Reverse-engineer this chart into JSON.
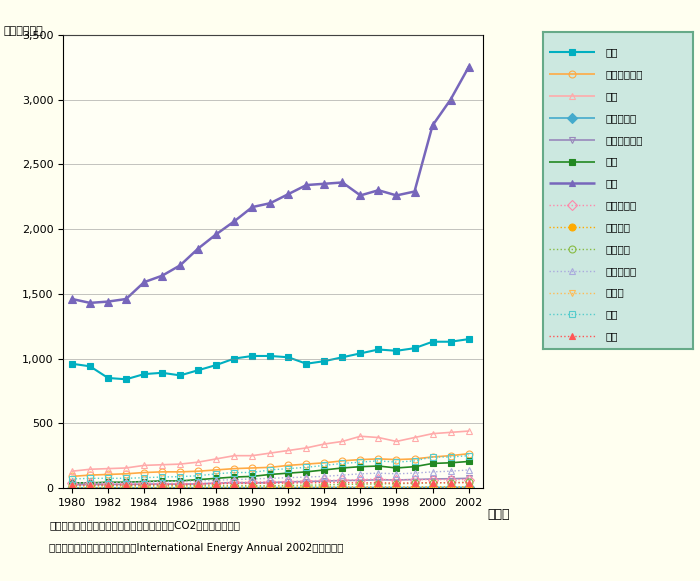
{
  "years": [
    1980,
    1981,
    1982,
    1983,
    1984,
    1985,
    1986,
    1987,
    1988,
    1989,
    1990,
    1991,
    1992,
    1993,
    1994,
    1995,
    1996,
    1997,
    1998,
    1999,
    2000,
    2001,
    2002
  ],
  "series": {
    "日本": [
      960,
      940,
      850,
      840,
      880,
      890,
      870,
      910,
      950,
      1000,
      1020,
      1020,
      1010,
      960,
      980,
      1010,
      1040,
      1070,
      1060,
      1080,
      1130,
      1130,
      1150
    ],
    "インドネシア": [
      90,
      100,
      105,
      110,
      120,
      125,
      125,
      130,
      140,
      150,
      155,
      160,
      175,
      185,
      195,
      210,
      220,
      225,
      220,
      225,
      240,
      250,
      265
    ],
    "韓国": [
      130,
      145,
      150,
      155,
      175,
      180,
      185,
      200,
      225,
      250,
      250,
      270,
      290,
      310,
      340,
      360,
      400,
      390,
      360,
      390,
      420,
      430,
      440
    ],
    "カンボジア": [
      2,
      2,
      2,
      2,
      2,
      2,
      2,
      2,
      3,
      3,
      3,
      3,
      3,
      3,
      4,
      4,
      4,
      4,
      4,
      4,
      5,
      5,
      5
    ],
    "シンガポール": [
      25,
      28,
      28,
      28,
      30,
      32,
      30,
      32,
      38,
      42,
      40,
      42,
      48,
      50,
      54,
      58,
      60,
      64,
      62,
      66,
      70,
      72,
      75
    ],
    "タイ": [
      40,
      40,
      45,
      45,
      50,
      55,
      55,
      65,
      75,
      85,
      90,
      105,
      115,
      125,
      140,
      155,
      165,
      170,
      155,
      165,
      190,
      195,
      205
    ],
    "中国": [
      1460,
      1430,
      1440,
      1460,
      1590,
      1640,
      1720,
      1850,
      1960,
      2060,
      2170,
      2200,
      2270,
      2340,
      2350,
      2360,
      2260,
      2300,
      2260,
      2290,
      2800,
      3000,
      3250
    ],
    "フィリピン": [
      40,
      40,
      35,
      35,
      35,
      35,
      35,
      35,
      40,
      45,
      45,
      50,
      50,
      55,
      60,
      60,
      65,
      70,
      60,
      65,
      65,
      65,
      65
    ],
    "ブルネイ": [
      5,
      5,
      5,
      5,
      6,
      6,
      6,
      6,
      6,
      7,
      7,
      7,
      7,
      8,
      8,
      8,
      8,
      8,
      8,
      8,
      9,
      9,
      9
    ],
    "ベトナム": [
      18,
      18,
      18,
      18,
      18,
      18,
      18,
      18,
      18,
      18,
      18,
      18,
      20,
      22,
      24,
      28,
      30,
      32,
      34,
      36,
      40,
      42,
      45
    ],
    "マレーシア": [
      40,
      40,
      42,
      44,
      48,
      50,
      52,
      55,
      60,
      65,
      70,
      75,
      80,
      85,
      90,
      100,
      110,
      115,
      110,
      115,
      125,
      130,
      140
    ],
    "ラオス": [
      1,
      1,
      1,
      1,
      1,
      1,
      1,
      1,
      1,
      1,
      1,
      1,
      1,
      1,
      2,
      2,
      2,
      2,
      2,
      2,
      2,
      2,
      2
    ],
    "台湾": [
      70,
      75,
      75,
      75,
      80,
      85,
      88,
      95,
      110,
      120,
      120,
      140,
      150,
      160,
      175,
      190,
      200,
      210,
      200,
      210,
      240,
      240,
      250
    ],
    "香港": [
      20,
      22,
      23,
      23,
      25,
      26,
      27,
      30,
      32,
      35,
      35,
      38,
      38,
      40,
      42,
      42,
      40,
      42,
      38,
      40,
      42,
      40,
      42
    ]
  },
  "series_styles": {
    "日本": {
      "color": "#00afc0",
      "marker": "s",
      "linestyle": "-",
      "markersize": 5,
      "linewidth": 1.5,
      "markerfacecolor": "#00afc0"
    },
    "インドネシア": {
      "color": "#ffaa44",
      "marker": "o",
      "linestyle": "-",
      "markersize": 5,
      "linewidth": 1.2,
      "markerfacecolor": "none"
    },
    "韓国": {
      "color": "#ffaaaa",
      "marker": "^",
      "linestyle": "-",
      "markersize": 5,
      "linewidth": 1.2,
      "markerfacecolor": "none"
    },
    "カンボジア": {
      "color": "#44aacc",
      "marker": "D",
      "linestyle": "-",
      "markersize": 5,
      "linewidth": 1.2,
      "markerfacecolor": "#44aacc"
    },
    "シンガポール": {
      "color": "#9988bb",
      "marker": "v",
      "linestyle": "-",
      "markersize": 5,
      "linewidth": 1.2,
      "markerfacecolor": "none"
    },
    "タイ": {
      "color": "#228822",
      "marker": "s",
      "linestyle": "-",
      "markersize": 5,
      "linewidth": 1.2,
      "markerfacecolor": "#228822"
    },
    "中国": {
      "color": "#7766bb",
      "marker": "^",
      "linestyle": "-",
      "markersize": 6,
      "linewidth": 1.8,
      "markerfacecolor": "#7766bb"
    },
    "フィリピン": {
      "color": "#ff88aa",
      "marker": "D",
      "linestyle": ":",
      "markersize": 5,
      "linewidth": 1.0,
      "markerfacecolor": "none"
    },
    "ブルネイ": {
      "color": "#ffaa00",
      "marker": "o",
      "linestyle": ":",
      "markersize": 5,
      "linewidth": 1.0,
      "markerfacecolor": "#ffaa00"
    },
    "ベトナム": {
      "color": "#88bb44",
      "marker": "o",
      "linestyle": ":",
      "markersize": 5,
      "linewidth": 1.0,
      "markerfacecolor": "none"
    },
    "マレーシア": {
      "color": "#aaaadd",
      "marker": "^",
      "linestyle": ":",
      "markersize": 5,
      "linewidth": 1.0,
      "markerfacecolor": "none"
    },
    "ラオス": {
      "color": "#ffbb55",
      "marker": "v",
      "linestyle": ":",
      "markersize": 5,
      "linewidth": 1.0,
      "markerfacecolor": "none"
    },
    "台湾": {
      "color": "#55cccc",
      "marker": "s",
      "linestyle": ":",
      "markersize": 5,
      "linewidth": 1.0,
      "markerfacecolor": "none"
    },
    "香港": {
      "color": "#ff5555",
      "marker": "^",
      "linestyle": ":",
      "markersize": 5,
      "linewidth": 1.0,
      "markerfacecolor": "#ff5555"
    }
  },
  "series_order": [
    "日本",
    "インドネシア",
    "韓国",
    "カンボジア",
    "シンガポール",
    "タイ",
    "中国",
    "フィリピン",
    "ブルネイ",
    "ベトナム",
    "マレーシア",
    "ラオス",
    "台湾",
    "香港"
  ],
  "ylim": [
    0,
    3500
  ],
  "yticks": [
    0,
    500,
    1000,
    1500,
    2000,
    2500,
    3000,
    3500
  ],
  "xticks": [
    1980,
    1982,
    1984,
    1986,
    1988,
    1990,
    1992,
    1994,
    1996,
    1998,
    2000,
    2002
  ],
  "xlabel": "（年）",
  "ylabel": "（百万トン）",
  "bg_color": "#fffff0",
  "plot_bg_color": "#fffff5",
  "legend_bg_color": "#cce8e0",
  "legend_border_color": "#66aa88",
  "grid_color": "#888888",
  "note1": "（注）数値は化石燃料の消費により発生するCO2排出量である。",
  "note2": "資料）アメリカエネルギー省「International Energy Annual 2002」より作成"
}
